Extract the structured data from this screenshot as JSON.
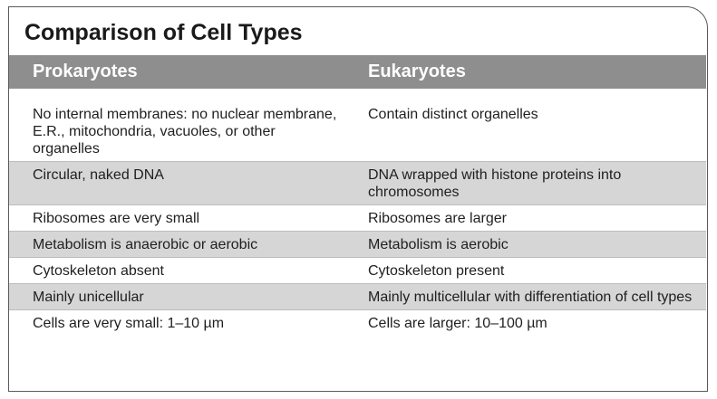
{
  "title": "Comparison of Cell Types",
  "headers": {
    "col1": "Prokaryotes",
    "col2": "Eukaryotes"
  },
  "rows": [
    {
      "prokaryote": "No internal membranes: no nuclear membrane, E.R., mitochondria, vacuoles, or other organelles",
      "eukaryote": "Contain distinct organelles"
    },
    {
      "prokaryote": "Circular, naked DNA",
      "eukaryote": "DNA wrapped with histone proteins into chromosomes"
    },
    {
      "prokaryote": "Ribosomes are very small",
      "eukaryote": "Ribosomes are larger"
    },
    {
      "prokaryote": "Metabolism is anaerobic or aerobic",
      "eukaryote": "Metabolism is aerobic"
    },
    {
      "prokaryote": "Cytoskeleton absent",
      "eukaryote": "Cytoskeleton present"
    },
    {
      "prokaryote": "Mainly unicellular",
      "eukaryote": "Mainly multicellular with differentiation of cell types"
    },
    {
      "prokaryote": "Cells are very small: 1–10 µm",
      "eukaryote": "Cells are larger: 10–100 µm"
    }
  ],
  "colors": {
    "header_bg": "#8e8e8e",
    "shaded_row": "#d6d6d6",
    "border": "#5a5a5a"
  }
}
